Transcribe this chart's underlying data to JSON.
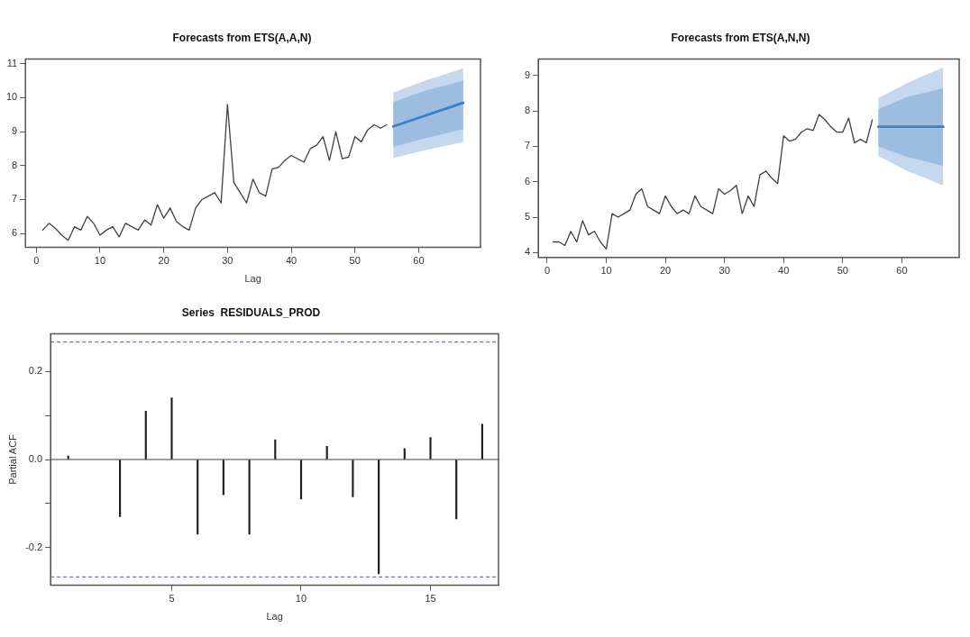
{
  "chart_data": [
    {
      "type": "line",
      "title": "Forecasts from ETS(A,A,N)",
      "xlabel": "Lag",
      "xlim": [
        -1.7,
        69.7
      ],
      "ylim": [
        5.59,
        11.14
      ],
      "xticks": [
        0,
        10,
        20,
        30,
        40,
        50,
        60
      ],
      "yticks": [
        6,
        7,
        8,
        9,
        10,
        11
      ],
      "grid": false,
      "legend": false,
      "marker": "none",
      "line_style": "solid",
      "series": [
        {
          "type": "line",
          "color": "#404040",
          "x": [
            1,
            2,
            3,
            4,
            5,
            6,
            7,
            8,
            9,
            10,
            11,
            12,
            13,
            14,
            15,
            16,
            17,
            18,
            19,
            20,
            21,
            22,
            23,
            24,
            25,
            26,
            27,
            28,
            29,
            30,
            31,
            32,
            33,
            34,
            35,
            36,
            37,
            38,
            39,
            40,
            41,
            42,
            43,
            44,
            45,
            46,
            47,
            48,
            49,
            50,
            51,
            52,
            53,
            54,
            55
          ],
          "values": [
            6.1,
            6.3,
            6.15,
            5.95,
            5.8,
            6.2,
            6.1,
            6.5,
            6.3,
            5.95,
            6.1,
            6.2,
            5.9,
            6.3,
            6.2,
            6.1,
            6.4,
            6.25,
            6.85,
            6.45,
            6.75,
            6.35,
            6.2,
            6.1,
            6.75,
            7.0,
            7.1,
            7.2,
            6.9,
            9.8,
            7.5,
            7.2,
            6.9,
            7.6,
            7.2,
            7.1,
            7.9,
            7.95,
            8.15,
            8.3,
            8.2,
            8.1,
            8.5,
            8.6,
            8.85,
            8.15,
            9.0,
            8.2,
            8.25,
            8.85,
            8.7,
            9.05,
            9.2,
            9.1,
            9.2
          ]
        },
        {
          "type": "line",
          "color": "#3f7fc4",
          "x": [
            56,
            61,
            67
          ],
          "values": [
            9.15,
            9.47,
            9.85
          ],
          "lower": [
            8.55,
            8.8,
            9.07
          ],
          "upper": [
            9.87,
            10.2,
            10.5
          ]
        },
        {
          "type": "line",
          "color": "#3f7fc4",
          "x": [
            56,
            61,
            67
          ],
          "values": [
            9.15,
            9.47,
            9.85
          ],
          "lower": [
            8.22,
            8.45,
            8.69
          ],
          "upper": [
            10.15,
            10.5,
            10.86
          ]
        }
      ]
    },
    {
      "type": "line",
      "title": "Forecasts from ETS(A,N,N)",
      "xlim": [
        -1.5,
        69.7
      ],
      "ylim": [
        3.86,
        9.47
      ],
      "xticks": [
        0,
        10,
        20,
        30,
        40,
        50,
        60
      ],
      "yticks": [
        4,
        5,
        6,
        7,
        8,
        9
      ],
      "grid": false,
      "legend": false,
      "marker": "none",
      "line_style": "solid",
      "series": [
        {
          "type": "line",
          "color": "#404040",
          "x": [
            1,
            2,
            3,
            4,
            5,
            6,
            7,
            8,
            9,
            10,
            11,
            12,
            13,
            14,
            15,
            16,
            17,
            18,
            19,
            20,
            21,
            22,
            23,
            24,
            25,
            26,
            27,
            28,
            29,
            30,
            31,
            32,
            33,
            34,
            35,
            36,
            37,
            38,
            39,
            40,
            41,
            42,
            43,
            44,
            45,
            46,
            47,
            48,
            49,
            50,
            51,
            52,
            53,
            54,
            55
          ],
          "values": [
            4.3,
            4.3,
            4.2,
            4.6,
            4.3,
            4.9,
            4.5,
            4.6,
            4.3,
            4.1,
            5.1,
            5.0,
            5.1,
            5.2,
            5.65,
            5.8,
            5.3,
            5.2,
            5.1,
            5.6,
            5.3,
            5.1,
            5.2,
            5.1,
            5.6,
            5.3,
            5.2,
            5.1,
            5.8,
            5.65,
            5.75,
            5.9,
            5.1,
            5.6,
            5.3,
            6.2,
            6.3,
            6.1,
            5.95,
            7.3,
            7.15,
            7.2,
            7.4,
            7.5,
            7.45,
            7.9,
            7.75,
            7.55,
            7.4,
            7.4,
            7.8,
            7.1,
            7.2,
            7.1,
            7.75
          ]
        },
        {
          "type": "line",
          "color": "#3f7fc4",
          "x": [
            56,
            61,
            67
          ],
          "values": [
            7.55,
            7.55,
            7.55
          ],
          "lower": [
            7.0,
            6.7,
            6.45
          ],
          "upper": [
            8.05,
            8.4,
            8.64
          ]
        },
        {
          "type": "line",
          "color": "#3f7fc4",
          "x": [
            56,
            61,
            67
          ],
          "values": [
            7.55,
            7.55,
            7.55
          ],
          "lower": [
            6.73,
            6.3,
            5.9
          ],
          "upper": [
            8.36,
            8.8,
            9.23
          ]
        }
      ]
    },
    {
      "type": "bar",
      "title": "Series  RESIDUALS_PROD",
      "xlabel": "Lag",
      "ylabel": "Partial ACF",
      "xlim": [
        0.32,
        17.63
      ],
      "ylim": [
        -0.286,
        0.286
      ],
      "xticks": [
        5,
        10,
        15
      ],
      "yticks": [
        {
          "value": -0.2,
          "label": "-0.2"
        },
        {
          "value": -0.1,
          "label": null
        },
        {
          "value": 0,
          "label": "0.0"
        },
        {
          "value": 0.1,
          "label": null
        },
        {
          "value": 0.2,
          "label": "0.2"
        }
      ],
      "grid": false,
      "legend": false,
      "color": "#202020",
      "x": [
        1,
        2,
        3,
        4,
        5,
        6,
        7,
        8,
        9,
        10,
        11,
        12,
        13,
        14,
        15,
        16,
        17
      ],
      "values": [
        0.008,
        null,
        -0.13,
        0.11,
        0.14,
        -0.17,
        -0.08,
        -0.17,
        0.045,
        -0.09,
        0.03,
        -0.085,
        -0.26,
        0.025,
        0.05,
        -0.135,
        0.08
      ],
      "ref_lines": [
        {
          "axis": "y",
          "value": 0,
          "color": "#404040",
          "line_style": "solid"
        },
        {
          "axis": "y",
          "value": 0.267,
          "color": "#4a4ae0",
          "line_style": "dashed"
        },
        {
          "axis": "y",
          "value": -0.267,
          "color": "#4a4ae0",
          "line_style": "dashed"
        }
      ]
    }
  ]
}
